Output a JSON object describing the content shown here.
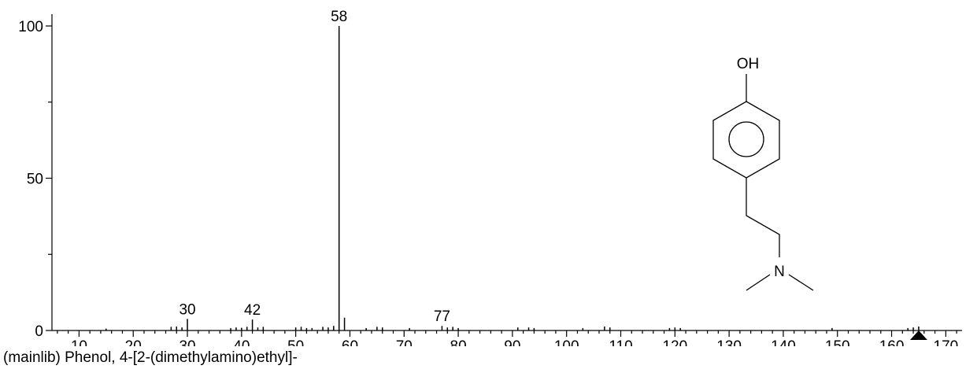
{
  "chart_data": {
    "type": "bar",
    "caption": "(mainlib) Phenol, 4-[2-(dimethylamino)ethyl]-",
    "xlim": [
      5,
      173
    ],
    "ylim": [
      0,
      100
    ],
    "x_ticks": [
      10,
      20,
      30,
      40,
      50,
      60,
      70,
      80,
      90,
      100,
      110,
      120,
      130,
      140,
      150,
      160,
      170
    ],
    "y_ticks": [
      0,
      50,
      100
    ],
    "peaks": [
      {
        "x": 15,
        "y": 0.6
      },
      {
        "x": 27,
        "y": 1.2
      },
      {
        "x": 28,
        "y": 1.3
      },
      {
        "x": 29,
        "y": 1.0
      },
      {
        "x": 30,
        "y": 3.8,
        "label": "30"
      },
      {
        "x": 38,
        "y": 0.8
      },
      {
        "x": 39,
        "y": 1.0
      },
      {
        "x": 40,
        "y": 0.9
      },
      {
        "x": 41,
        "y": 1.2
      },
      {
        "x": 42,
        "y": 3.6,
        "label": "42"
      },
      {
        "x": 43,
        "y": 1.0
      },
      {
        "x": 44,
        "y": 1.2
      },
      {
        "x": 50,
        "y": 1.0
      },
      {
        "x": 51,
        "y": 1.2
      },
      {
        "x": 52,
        "y": 0.8
      },
      {
        "x": 53,
        "y": 0.8
      },
      {
        "x": 55,
        "y": 1.2
      },
      {
        "x": 56,
        "y": 1.0
      },
      {
        "x": 57,
        "y": 1.5
      },
      {
        "x": 58,
        "y": 100,
        "label": "58"
      },
      {
        "x": 59,
        "y": 4.2
      },
      {
        "x": 63,
        "y": 0.8
      },
      {
        "x": 65,
        "y": 1.2
      },
      {
        "x": 66,
        "y": 1.0
      },
      {
        "x": 71,
        "y": 0.8
      },
      {
        "x": 77,
        "y": 1.5,
        "label": "77"
      },
      {
        "x": 78,
        "y": 1.0
      },
      {
        "x": 79,
        "y": 1.2
      },
      {
        "x": 80,
        "y": 0.8
      },
      {
        "x": 91,
        "y": 1.0
      },
      {
        "x": 93,
        "y": 1.0
      },
      {
        "x": 94,
        "y": 0.8
      },
      {
        "x": 103,
        "y": 0.8
      },
      {
        "x": 107,
        "y": 1.3
      },
      {
        "x": 108,
        "y": 1.0
      },
      {
        "x": 119,
        "y": 0.8
      },
      {
        "x": 120,
        "y": 1.0
      },
      {
        "x": 121,
        "y": 0.8
      },
      {
        "x": 149,
        "y": 0.8
      },
      {
        "x": 163,
        "y": 0.8
      },
      {
        "x": 164,
        "y": 1.0
      },
      {
        "x": 165,
        "y": 1.3
      }
    ],
    "marker_x": 165
  },
  "structure": {
    "oh_label": "OH",
    "n_label": "N"
  }
}
